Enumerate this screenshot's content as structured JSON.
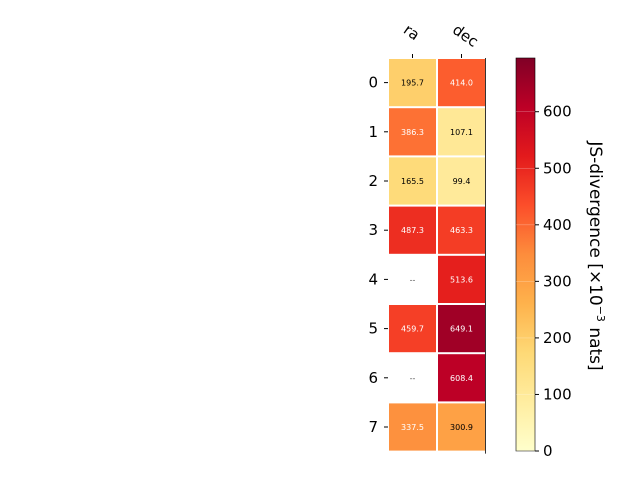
{
  "chart_data": {
    "type": "heatmap",
    "columns": [
      "ra",
      "dec"
    ],
    "rows": [
      "0",
      "1",
      "2",
      "3",
      "4",
      "5",
      "6",
      "7"
    ],
    "values": [
      [
        195.7,
        414.0
      ],
      [
        386.3,
        107.1
      ],
      [
        165.5,
        99.4
      ],
      [
        487.3,
        463.3
      ],
      [
        null,
        513.6
      ],
      [
        459.7,
        649.1
      ],
      [
        null,
        608.4
      ],
      [
        337.5,
        300.9
      ]
    ],
    "cell_labels": [
      [
        "195.7",
        "414.0"
      ],
      [
        "386.3",
        "107.1"
      ],
      [
        "165.5",
        "99.4"
      ],
      [
        "487.3",
        "463.3"
      ],
      [
        "--",
        "513.6"
      ],
      [
        "459.7",
        "649.1"
      ],
      [
        "--",
        "608.4"
      ],
      [
        "337.5",
        "300.9"
      ]
    ],
    "colorbar": {
      "label_main": "JS-divergence [×10",
      "label_exp": "−3",
      "label_tail": " nats]",
      "range": [
        0,
        695
      ],
      "ticks": [
        0,
        100,
        200,
        300,
        400,
        500,
        600
      ],
      "tick_labels": [
        "0",
        "100",
        "200",
        "300",
        "400",
        "500",
        "600"
      ],
      "colormap": "YlOrRd"
    },
    "colors": {
      "stops": [
        "#ffffcc",
        "#ffeda0",
        "#fed976",
        "#feb24c",
        "#fd8d3c",
        "#fc4e2a",
        "#e31a1c",
        "#bd0026",
        "#800026"
      ],
      "dark_text": "#000000",
      "light_text": "#ffffff",
      "missing_text": "#555555"
    }
  }
}
